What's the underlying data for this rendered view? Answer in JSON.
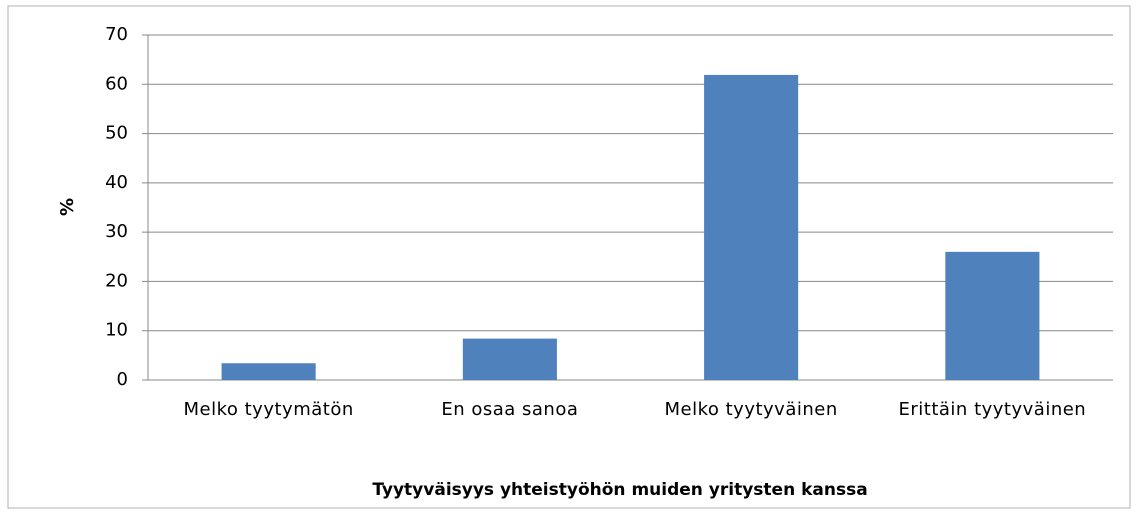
{
  "chart_data": {
    "type": "bar",
    "categories": [
      "Melko tyytymätön",
      "En osaa sanoa",
      "Melko tyytyväinen",
      "Erittäin tyytyväinen"
    ],
    "values": [
      3.4,
      8.4,
      61.9,
      26
    ],
    "color": "#4f81bd",
    "ylabel": "%",
    "xlabel": "Tyytyväisyys yhteistyöhön muiden yritysten kanssa",
    "ylim": [
      0,
      70
    ],
    "yticks": [
      0,
      10,
      20,
      30,
      40,
      50,
      60,
      70
    ],
    "grid": true
  }
}
